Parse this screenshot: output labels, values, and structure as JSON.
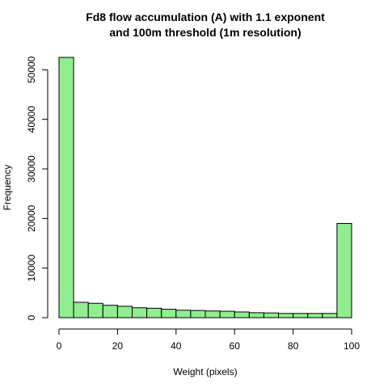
{
  "chart_data": {
    "type": "bar",
    "title_lines": [
      "Fd8 flow accumulation (A) with 1.1 exponent",
      "and 100m threshold (1m resolution)"
    ],
    "xlabel": "Weight (pixels)",
    "ylabel": "Frequency",
    "bin_edges": [
      0,
      5,
      10,
      15,
      20,
      25,
      30,
      35,
      40,
      45,
      50,
      55,
      60,
      65,
      70,
      75,
      80,
      85,
      90,
      95,
      100
    ],
    "values": [
      52500,
      3100,
      2900,
      2500,
      2300,
      2000,
      1900,
      1700,
      1500,
      1450,
      1350,
      1300,
      1150,
      1000,
      950,
      850,
      850,
      850,
      850,
      19000
    ],
    "bar_color": "#90ee90",
    "xlim": [
      0,
      100
    ],
    "ylim": [
      0,
      52500
    ],
    "x_ticks": [
      "0",
      "20",
      "40",
      "60",
      "80",
      "100"
    ],
    "y_ticks": [
      "0",
      "10000",
      "20000",
      "30000",
      "40000",
      "50000"
    ],
    "grid": false,
    "legend": "none"
  }
}
